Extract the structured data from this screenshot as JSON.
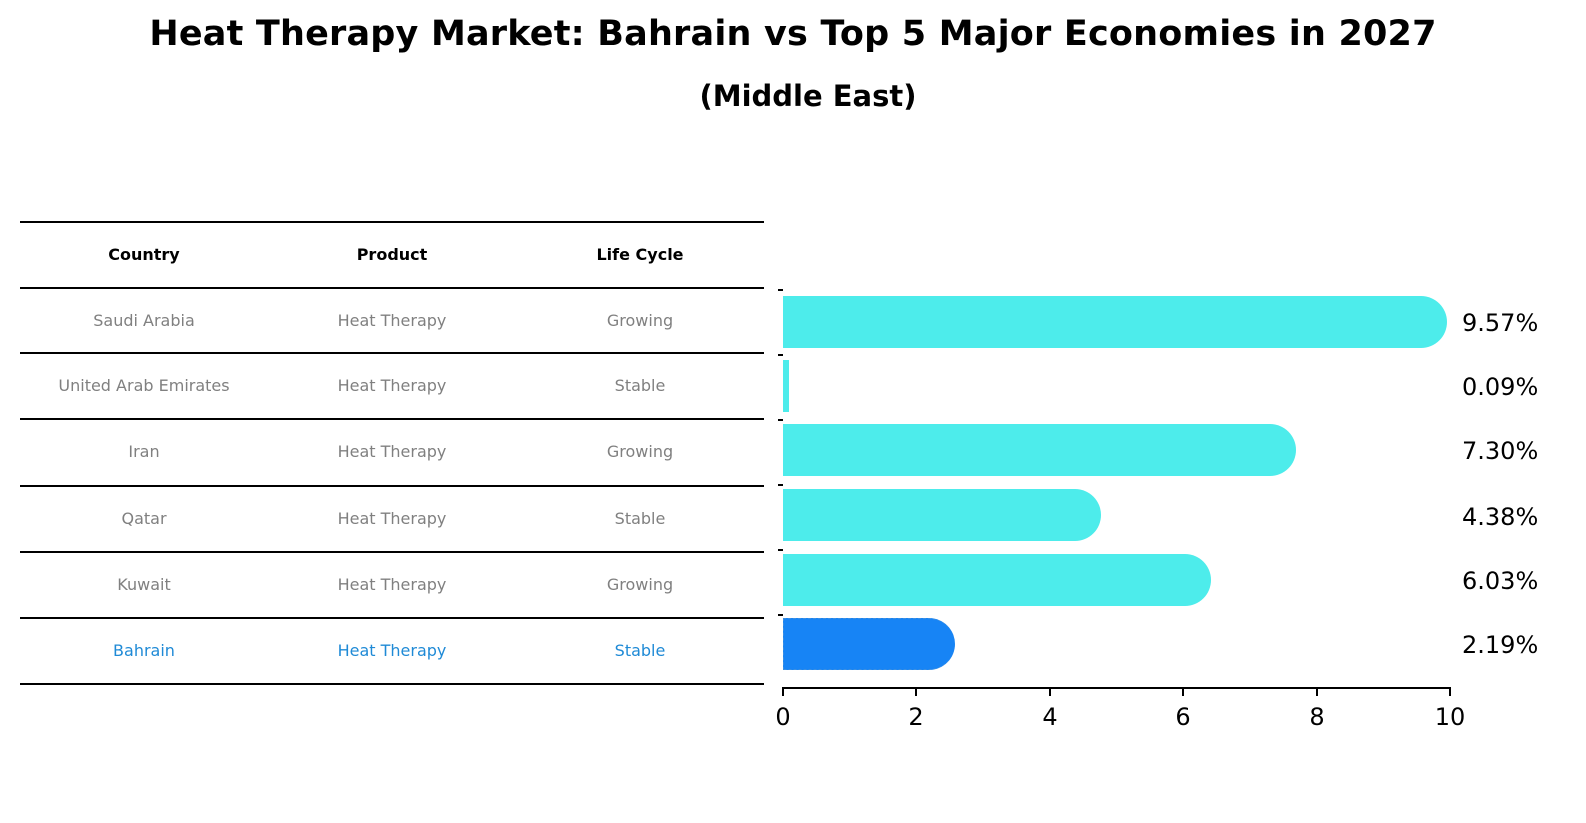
{
  "header": {
    "title": "Heat Therapy Market: Bahrain vs Top 5 Major Economies in 2027",
    "subtitle": "(Middle East)"
  },
  "table": {
    "columns": [
      "Country",
      "Product",
      "Life Cycle"
    ],
    "rows": [
      {
        "country": "Saudi Arabia",
        "product": "Heat Therapy",
        "life_cycle": "Growing",
        "highlight": false
      },
      {
        "country": "United Arab Emirates",
        "product": "Heat Therapy",
        "life_cycle": "Stable",
        "highlight": false
      },
      {
        "country": "Iran",
        "product": "Heat Therapy",
        "life_cycle": "Growing",
        "highlight": false
      },
      {
        "country": "Qatar",
        "product": "Heat Therapy",
        "life_cycle": "Stable",
        "highlight": false
      },
      {
        "country": "Kuwait",
        "product": "Heat Therapy",
        "life_cycle": "Growing",
        "highlight": false
      },
      {
        "country": "Bahrain",
        "product": "Heat Therapy",
        "life_cycle": "Stable",
        "highlight": true
      }
    ]
  },
  "colors": {
    "bar": "#4deceb",
    "highlight_bar": "#1784f5",
    "highlight_text": "#1f8ad6",
    "row_text": "#808080"
  },
  "chart_data": {
    "type": "bar",
    "orientation": "horizontal",
    "title": "Heat Therapy Market: Bahrain vs Top 5 Major Economies in 2027",
    "subtitle": "(Middle East)",
    "categories": [
      "Saudi Arabia",
      "United Arab Emirates",
      "Iran",
      "Qatar",
      "Kuwait",
      "Bahrain"
    ],
    "values": [
      9.57,
      0.09,
      7.3,
      4.38,
      6.03,
      2.19
    ],
    "value_labels": [
      "9.57%",
      "0.09%",
      "7.30%",
      "4.38%",
      "6.03%",
      "2.19%"
    ],
    "highlighted_category": "Bahrain",
    "xlabel": "",
    "ylabel": "",
    "xlim": [
      0,
      10
    ],
    "xticks": [
      "0",
      "2",
      "4",
      "6",
      "8",
      "10"
    ],
    "grid": false,
    "legend": null
  }
}
